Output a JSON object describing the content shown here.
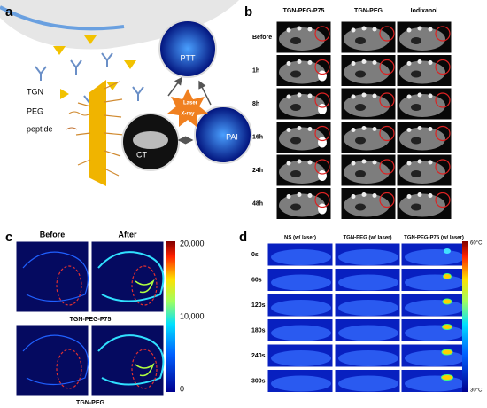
{
  "panel_a": {
    "letter": "a",
    "labels": {
      "tgn": "TGN",
      "peg": "PEG",
      "peptide": "peptide",
      "ptt": "PTT",
      "laser": "Laser",
      "xray": "X-ray",
      "ct": "CT",
      "pai": "PAI"
    }
  },
  "panel_b": {
    "letter": "b",
    "columns": [
      "TGN-PEG-P75",
      "TGN-PEG",
      "Iodixanol"
    ],
    "rows": [
      "Before",
      "1h",
      "8h",
      "16h",
      "24h",
      "48h"
    ]
  },
  "panel_c": {
    "letter": "c",
    "columns": [
      "Before",
      "After"
    ],
    "groups": [
      "TGN-PEG-P75",
      "TGN-PEG"
    ],
    "colorbar": [
      "20,000",
      "10,000",
      "0"
    ]
  },
  "panel_d": {
    "letter": "d",
    "columns": [
      "NS (w/ laser)",
      "TGN-PEG (w/ laser)",
      "TGN-PEG-P75 (w/ laser)"
    ],
    "rows": [
      "0s",
      "60s",
      "120s",
      "180s",
      "240s",
      "300s"
    ],
    "colorbar": [
      "60°C",
      "30°C"
    ]
  }
}
